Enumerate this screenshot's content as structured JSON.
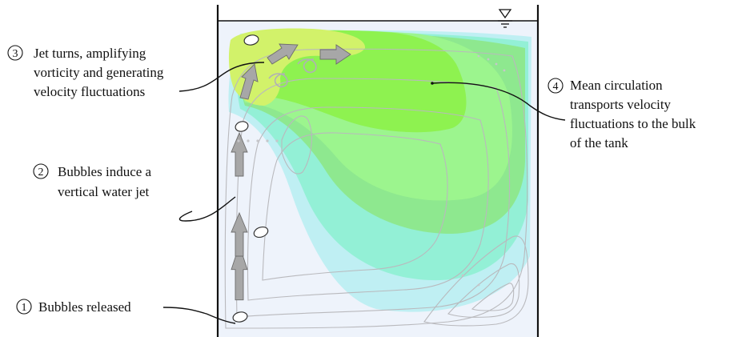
{
  "annotations": {
    "step1": {
      "number": "1",
      "lines": [
        "Bubbles released"
      ]
    },
    "step2": {
      "number": "2",
      "lines": [
        "Bubbles induce a",
        "vertical water jet"
      ]
    },
    "step3": {
      "number": "3",
      "lines": [
        "Jet turns, amplifying",
        "vorticity and generating",
        "velocity fluctuations"
      ]
    },
    "step4": {
      "number": "4",
      "lines": [
        "Mean circulation",
        "transports velocity",
        "fluctuations to the bulk",
        "of the tank"
      ]
    }
  },
  "colors": {
    "tank_water": "#eef3fb",
    "region_cyan": "#bfeff3",
    "region_teal": "#93f0d6",
    "region_green": "#9cf58e",
    "region_lime": "#d2f26a",
    "region_bright_green": "#8ef250",
    "streamlines": "#b9b9bd",
    "flow_arrows": "#a7a7a7"
  },
  "icons": [
    "free-surface-icon",
    "bubble-icon",
    "flow-arrow-icon",
    "swirl-icon"
  ]
}
